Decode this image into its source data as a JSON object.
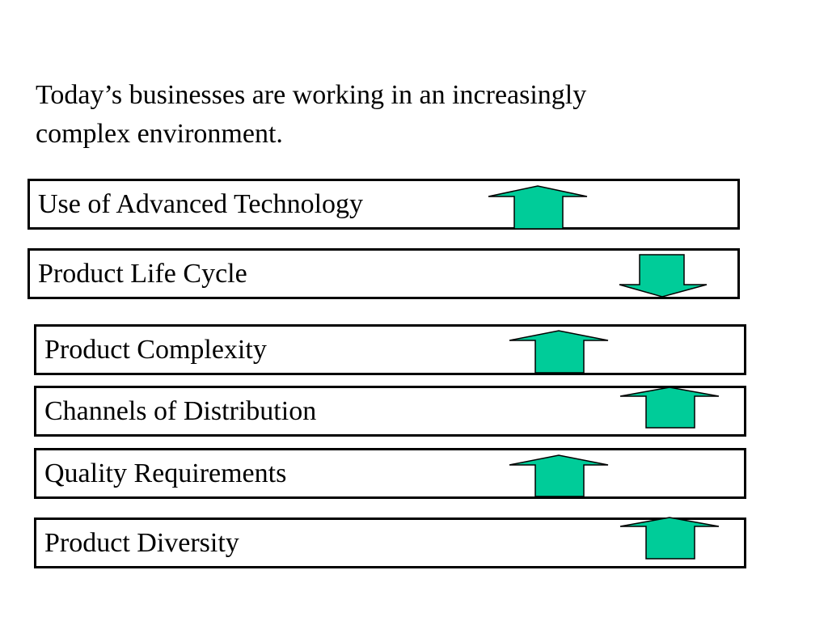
{
  "slide": {
    "intro_line_1": "Today’s businesses are working in an increasingly",
    "intro_line_2": "complex environment."
  },
  "factors": [
    {
      "label": "Use of Advanced Technology",
      "trend": "up"
    },
    {
      "label": "Product Life Cycle",
      "trend": "down"
    },
    {
      "label": "Product Complexity",
      "trend": "up"
    },
    {
      "label": "Channels of Distribution",
      "trend": "up"
    },
    {
      "label": "Quality Requirements",
      "trend": "up"
    },
    {
      "label": "Product Diversity",
      "trend": "up"
    }
  ],
  "colors": {
    "arrow_fill": "#00CC99",
    "outline": "#000000",
    "background": "#FFFFFF"
  },
  "icons": {
    "up": "arrow-up-icon",
    "down": "arrow-down-icon"
  }
}
